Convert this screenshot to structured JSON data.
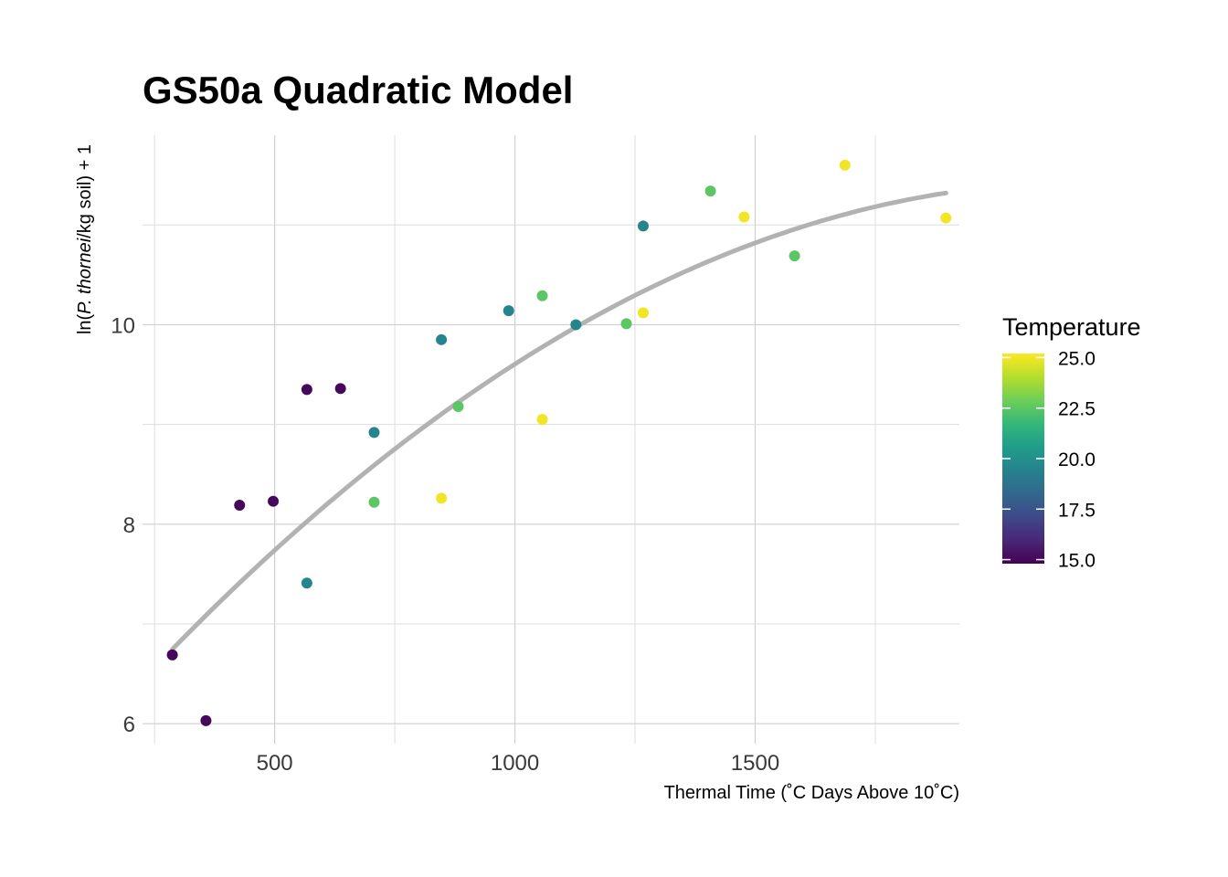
{
  "chart_data": {
    "type": "scatter",
    "title": "GS50a Quadratic Model",
    "xlabel": "Thermal Time (˚C Days Above 10˚C)",
    "ylabel_parts": {
      "prefix": "ln(",
      "italic": "P. thornei",
      "suffix": "/kg soil) + 1"
    },
    "xlim": [
      225,
      1925
    ],
    "ylim": [
      5.8,
      11.9
    ],
    "x_ticks": [
      500,
      1000,
      1500
    ],
    "x_tick_labels": [
      "500",
      "1000",
      "1500"
    ],
    "x_minor_gridlines": [
      250,
      750,
      1250,
      1750
    ],
    "y_ticks": [
      6,
      8,
      10
    ],
    "y_tick_labels": [
      "6",
      "8",
      "10"
    ],
    "y_minor_gridlines": [
      7,
      9,
      11
    ],
    "grid": true,
    "legend": {
      "title": "Temperature",
      "placement": "right",
      "type": "colorbar",
      "range": [
        14.8,
        25.2
      ],
      "ticks": [
        15,
        17.5,
        20,
        22.5,
        25
      ],
      "tick_labels": [
        "15.0",
        "17.5",
        "20.0",
        "22.5",
        "25.0"
      ],
      "palette": [
        "#440154",
        "#482777",
        "#3e4989",
        "#31688e",
        "#26828e",
        "#1f9e89",
        "#35b779",
        "#6ece58",
        "#b5de2b",
        "#fde725"
      ]
    },
    "points": [
      {
        "x": 287,
        "y": 6.69,
        "temperature": 15.0
      },
      {
        "x": 357,
        "y": 6.03,
        "temperature": 15.0
      },
      {
        "x": 427,
        "y": 8.19,
        "temperature": 15.0
      },
      {
        "x": 497,
        "y": 8.23,
        "temperature": 15.0
      },
      {
        "x": 567,
        "y": 9.35,
        "temperature": 15.0
      },
      {
        "x": 637,
        "y": 9.36,
        "temperature": 15.0
      },
      {
        "x": 567,
        "y": 7.41,
        "temperature": 19.5
      },
      {
        "x": 707,
        "y": 8.92,
        "temperature": 19.5
      },
      {
        "x": 847,
        "y": 9.85,
        "temperature": 19.5
      },
      {
        "x": 987,
        "y": 10.14,
        "temperature": 19.5
      },
      {
        "x": 1127,
        "y": 10.0,
        "temperature": 19.5
      },
      {
        "x": 1267,
        "y": 10.99,
        "temperature": 19.5
      },
      {
        "x": 707,
        "y": 8.22,
        "temperature": 22.5
      },
      {
        "x": 882,
        "y": 9.18,
        "temperature": 22.5
      },
      {
        "x": 1057,
        "y": 10.29,
        "temperature": 22.5
      },
      {
        "x": 1232,
        "y": 10.01,
        "temperature": 22.5
      },
      {
        "x": 1407,
        "y": 11.34,
        "temperature": 22.5
      },
      {
        "x": 1582,
        "y": 10.69,
        "temperature": 22.5
      },
      {
        "x": 847,
        "y": 8.26,
        "temperature": 25.0
      },
      {
        "x": 1057,
        "y": 9.05,
        "temperature": 25.0
      },
      {
        "x": 1267,
        "y": 10.12,
        "temperature": 25.0
      },
      {
        "x": 1477,
        "y": 11.08,
        "temperature": 25.0
      },
      {
        "x": 1687,
        "y": 11.6,
        "temperature": 25.0
      },
      {
        "x": 1897,
        "y": 11.07,
        "temperature": 25.0
      }
    ],
    "fit": {
      "type": "quadratic",
      "color": "#b2b2b2",
      "x_range": [
        287,
        1897
      ],
      "curve": [
        {
          "x": 287,
          "y": 6.8
        },
        {
          "x": 400,
          "y": 7.28
        },
        {
          "x": 600,
          "y": 8.12
        },
        {
          "x": 800,
          "y": 8.89
        },
        {
          "x": 1000,
          "y": 9.58
        },
        {
          "x": 1200,
          "y": 10.19
        },
        {
          "x": 1400,
          "y": 10.68
        },
        {
          "x": 1600,
          "y": 11.04
        },
        {
          "x": 1800,
          "y": 11.23
        },
        {
          "x": 1897,
          "y": 11.27
        }
      ]
    }
  }
}
